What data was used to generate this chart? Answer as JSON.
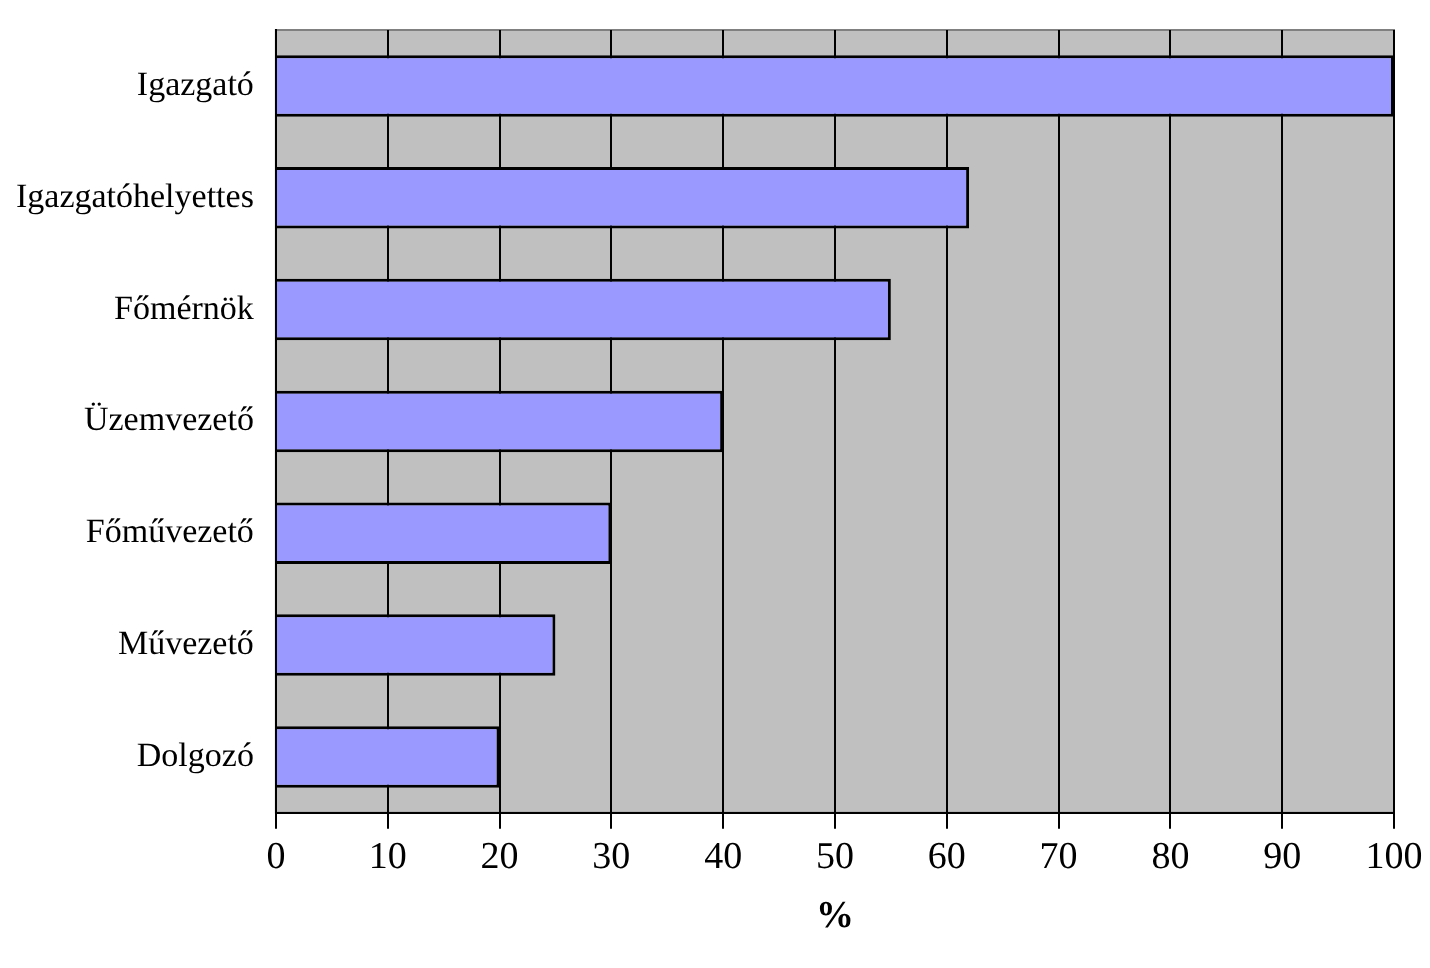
{
  "chart_data": {
    "type": "bar",
    "orientation": "horizontal",
    "xlabel": "%",
    "categories": [
      "Igazgató",
      "Igazgatóhelyettes",
      "Főmérnök",
      "Üzemvezető",
      "Főművezető",
      "Művezető",
      "Dolgozó"
    ],
    "values": [
      100,
      62,
      55,
      40,
      30,
      25,
      20
    ],
    "color": "#9999ff",
    "xlim": [
      0,
      100
    ],
    "xticks": [
      0,
      10,
      20,
      30,
      40,
      50,
      60,
      70,
      80,
      90,
      100
    ],
    "grid": "x",
    "legend": false
  }
}
